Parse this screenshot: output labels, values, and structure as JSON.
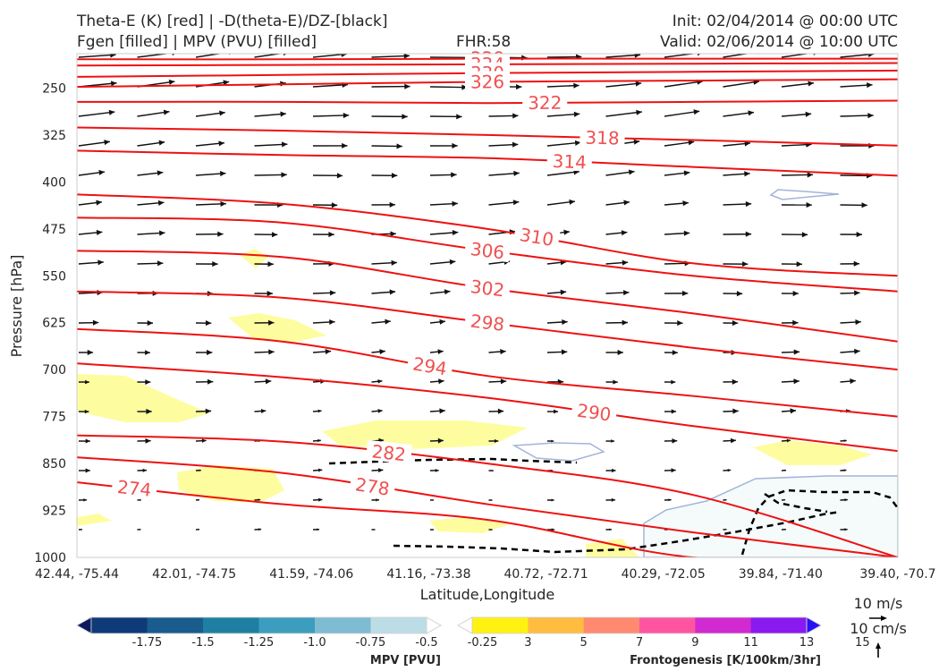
{
  "header": {
    "title_line1": "Theta-E (K) [red] | -D(theta-E)/DZ-[black]",
    "title_line2": "Fgen [filled] | MPV (PVU) [filled]",
    "fhr": "FHR:58",
    "init": "Init: 02/04/2014 @ 00:00 UTC",
    "valid": "Valid: 02/06/2014 @ 10:00 UTC"
  },
  "chart_data": {
    "type": "cross-section",
    "xlabel": "Latitude,Longitude",
    "ylabel": "Pressure [hPa]",
    "x_ticks": [
      "42.44, -75.44",
      "42.01, -74.75",
      "41.59, -74.06",
      "41.16, -73.38",
      "40.72, -72.71",
      "40.29, -72.05",
      "39.84, -71.40",
      "39.40, -70.7"
    ],
    "y_ticks": [
      250,
      325,
      400,
      475,
      550,
      625,
      700,
      775,
      850,
      925,
      1000
    ],
    "ylim": [
      1000,
      195
    ],
    "theta_e_color": "#ee1111",
    "theta_e_contours": [
      {
        "label": "338",
        "p": [
          204,
          204,
          203,
          203,
          203
        ],
        "label_at": 0.5
      },
      {
        "label": "334",
        "p": [
          214,
          213,
          212,
          211,
          210
        ],
        "label_at": 0.5
      },
      {
        "label": "330",
        "p": [
          232,
          229,
          226,
          224,
          222
        ],
        "label_at": 0.5
      },
      {
        "label": "326",
        "p": [
          248,
          244,
          240,
          238,
          236
        ],
        "label_at": 0.5
      },
      {
        "label": "322",
        "p": [
          272,
          272,
          274,
          272,
          270
        ],
        "label_at": 0.57
      },
      {
        "label": "318",
        "p": [
          313,
          318,
          325,
          333,
          342
        ],
        "label_at": 0.64
      },
      {
        "label": "314",
        "p": [
          350,
          357,
          362,
          376,
          390
        ],
        "label_at": 0.6
      },
      {
        "label": "310",
        "p": [
          420,
          435,
          475,
          530,
          550
        ],
        "label_at": 0.56
      },
      {
        "label": "306",
        "p": [
          457,
          465,
          510,
          550,
          575
        ],
        "label_at": 0.5
      },
      {
        "label": "302",
        "p": [
          510,
          520,
          570,
          610,
          655
        ],
        "label_at": 0.5
      },
      {
        "label": "298",
        "p": [
          575,
          585,
          625,
          665,
          700
        ],
        "label_at": 0.5
      },
      {
        "label": "294",
        "p": [
          635,
          655,
          710,
          742,
          775
        ],
        "label_at": 0.43
      },
      {
        "label": "290",
        "p": [
          690,
          712,
          745,
          790,
          830
        ],
        "label_at": 0.63
      },
      {
        "label": "282",
        "p": [
          805,
          815,
          850,
          900,
          1000
        ],
        "label_at": 0.38
      },
      {
        "label": "278",
        "p": [
          840,
          865,
          915,
          960,
          1000
        ],
        "label_at": 0.36
      },
      {
        "label": "274",
        "p": [
          880,
          915,
          940,
          1000,
          1000
        ],
        "label_at": 0.07
      }
    ],
    "mpv_colorbar": {
      "title": "MPV [PVU]",
      "ticks": [
        "-1.75",
        "-1.5",
        "-1.25",
        "-1.0",
        "-0.75",
        "-0.5",
        "-0.25"
      ],
      "colors": [
        "#0b1a60",
        "#0f3a7a",
        "#1a5c8e",
        "#1f7fa3",
        "#3d9dbe",
        "#7dbcd3",
        "#bcdde6",
        "#ffffff"
      ]
    },
    "fgen_colorbar": {
      "title": "Frontogenesis [K/100km/3hr]",
      "ticks": [
        "3",
        "5",
        "7",
        "9",
        "11",
        "13",
        "15"
      ],
      "colors": [
        "#ffffff",
        "#fff212",
        "#ffbd40",
        "#ff8a70",
        "#ff55a0",
        "#d02ad0",
        "#8a1af0",
        "#2a10f8"
      ]
    },
    "wind_reference": {
      "horizontal": "10 m/s",
      "vertical": "10 cm/s"
    }
  }
}
